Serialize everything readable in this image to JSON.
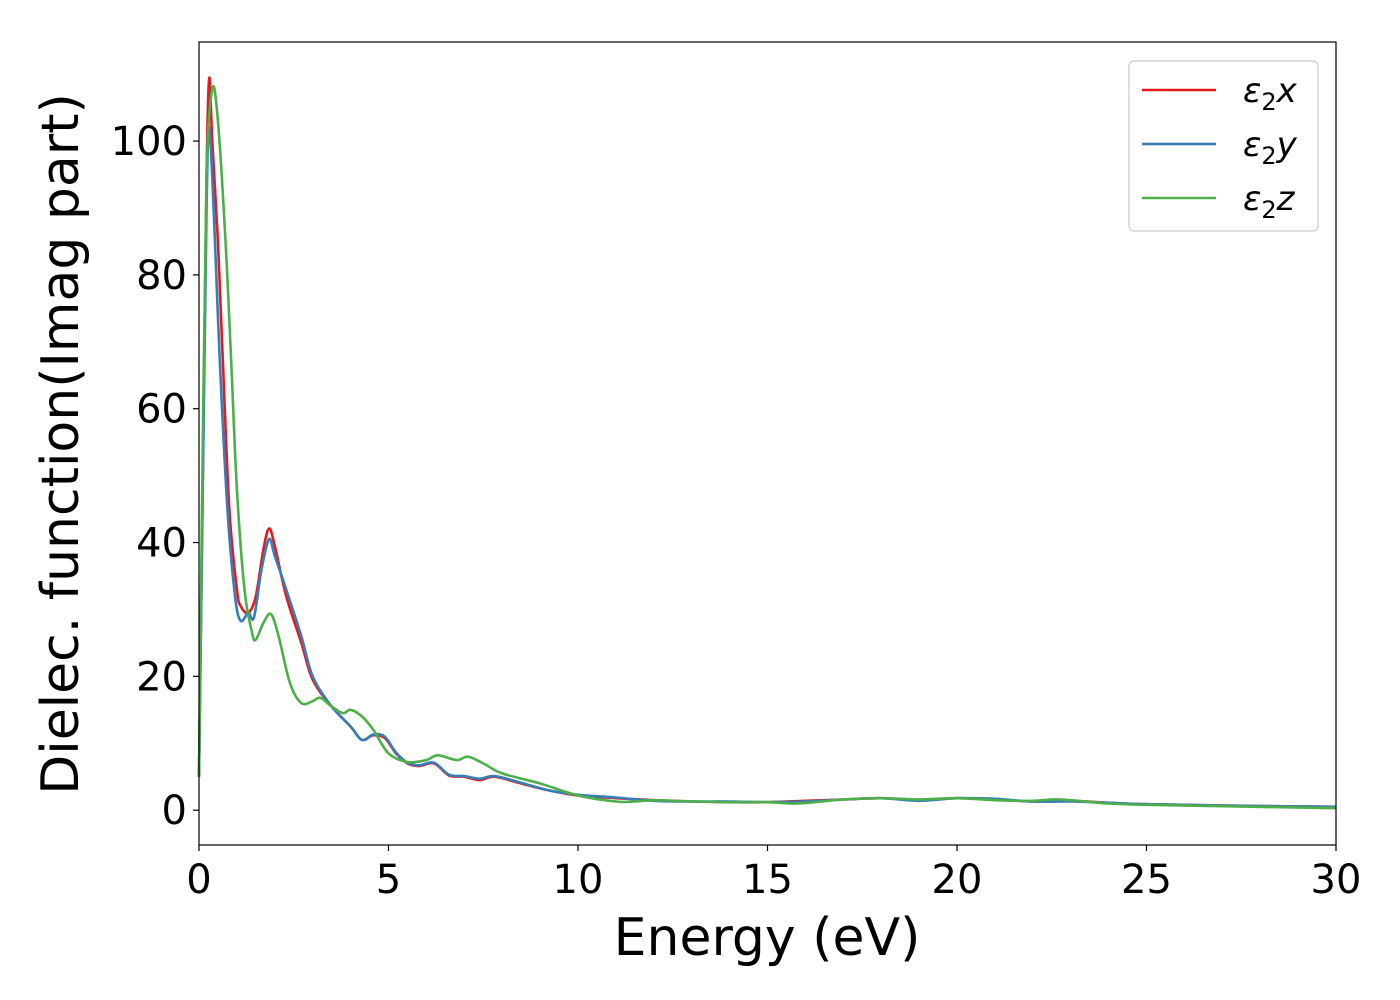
{
  "chart_data": {
    "type": "line",
    "title": "",
    "xlabel": "Energy (eV)",
    "ylabel": "Dielec. function(Imag part)",
    "xlim": [
      0,
      30
    ],
    "ylim": [
      -5.2,
      114.8
    ],
    "xticks": [
      0,
      5,
      10,
      15,
      20,
      25,
      30
    ],
    "yticks": [
      0,
      20,
      40,
      60,
      80,
      100
    ],
    "xtick_labels": [
      "0",
      "5",
      "10",
      "15",
      "20",
      "25",
      "30"
    ],
    "ytick_labels": [
      "0",
      "20",
      "40",
      "60",
      "80",
      "100"
    ],
    "grid": false,
    "legend_position": "top-right",
    "series": [
      {
        "name": "ε2x",
        "legend": {
          "base": "ε",
          "sub": "2",
          "tail": "x"
        },
        "color": "#e41a1c",
        "x": [
          0,
          0.1,
          0.2,
          0.27,
          0.35,
          0.5,
          0.63,
          0.8,
          1.0,
          1.1,
          1.3,
          1.5,
          1.7,
          1.85,
          2.0,
          2.3,
          2.7,
          3.0,
          3.5,
          4.0,
          4.3,
          4.6,
          4.9,
          5.2,
          5.5,
          5.8,
          6.2,
          6.6,
          7.0,
          7.4,
          7.8,
          8.5,
          9.2,
          10,
          11,
          12,
          13,
          14,
          15,
          16,
          17,
          18,
          19,
          20,
          21,
          22,
          23,
          24,
          25,
          27,
          30
        ],
        "y": [
          5,
          50,
          95,
          109.4,
          100,
          85,
          67,
          45,
          33,
          30.5,
          29.5,
          32,
          39,
          42.1,
          39.5,
          32,
          25,
          19.5,
          15.5,
          12.5,
          10.5,
          11.2,
          10.8,
          8.5,
          7,
          6.6,
          7,
          5.2,
          5,
          4.5,
          5,
          4,
          3,
          2.2,
          1.8,
          1.5,
          1.3,
          1.2,
          1.2,
          1.4,
          1.6,
          1.8,
          1.5,
          1.8,
          1.6,
          1.3,
          1.4,
          1.1,
          0.9,
          0.7,
          0.5
        ]
      },
      {
        "name": "ε2y",
        "legend": {
          "base": "ε",
          "sub": "2",
          "tail": "y"
        },
        "color": "#377eb8",
        "x": [
          0,
          0.1,
          0.2,
          0.27,
          0.4,
          0.55,
          0.75,
          0.95,
          1.1,
          1.3,
          1.45,
          1.65,
          1.85,
          2.0,
          2.3,
          2.7,
          3.0,
          3.5,
          4.0,
          4.3,
          4.6,
          4.9,
          5.2,
          5.5,
          5.8,
          6.2,
          6.6,
          7.0,
          7.4,
          7.8,
          8.5,
          9.2,
          10,
          11,
          12,
          13,
          14,
          15,
          16,
          17,
          18,
          19,
          20,
          21,
          22,
          23,
          24,
          25,
          27,
          30
        ],
        "y": [
          5,
          48,
          90,
          102,
          88,
          67,
          45,
          32,
          28.3,
          29.5,
          28.8,
          36,
          40.5,
          38,
          33,
          26,
          20,
          15.5,
          12.5,
          10.5,
          11.3,
          11,
          8.6,
          7.1,
          6.7,
          7.1,
          5.3,
          5.1,
          4.7,
          5.1,
          4.1,
          3,
          2.3,
          1.9,
          1.4,
          1.3,
          1.3,
          1.2,
          1.3,
          1.6,
          1.8,
          1.4,
          1.8,
          1.7,
          1.3,
          1.3,
          1.1,
          0.9,
          0.7,
          0.5
        ]
      },
      {
        "name": "ε2z",
        "legend": {
          "base": "ε",
          "sub": "2",
          "tail": "z"
        },
        "color": "#4daf4a",
        "x": [
          0,
          0.1,
          0.2,
          0.35,
          0.5,
          0.7,
          0.85,
          1.0,
          1.2,
          1.4,
          1.5,
          1.7,
          1.9,
          2.1,
          2.4,
          2.7,
          3.0,
          3.2,
          3.5,
          3.8,
          4.0,
          4.3,
          4.6,
          5.0,
          5.5,
          6.0,
          6.3,
          6.8,
          7.1,
          7.5,
          8.0,
          9.0,
          10,
          11,
          11.5,
          12,
          13,
          14,
          15,
          15.8,
          17,
          18,
          19,
          20,
          21,
          22,
          22.5,
          23,
          24,
          25,
          27,
          30
        ],
        "y": [
          5,
          55,
          95,
          107.8,
          103,
          85,
          67,
          48,
          33,
          26.5,
          25.5,
          28,
          29.3,
          26,
          19,
          16,
          16.3,
          16.8,
          15.5,
          14.5,
          15,
          14,
          12,
          8.5,
          7.2,
          7.5,
          8.2,
          7.5,
          8,
          7,
          5.5,
          4,
          2.2,
          1.3,
          1.3,
          1.5,
          1.3,
          1.2,
          1.2,
          1.0,
          1.6,
          1.8,
          1.6,
          1.8,
          1.5,
          1.4,
          1.6,
          1.5,
          1.0,
          0.8,
          0.6,
          0.3
        ]
      }
    ]
  }
}
